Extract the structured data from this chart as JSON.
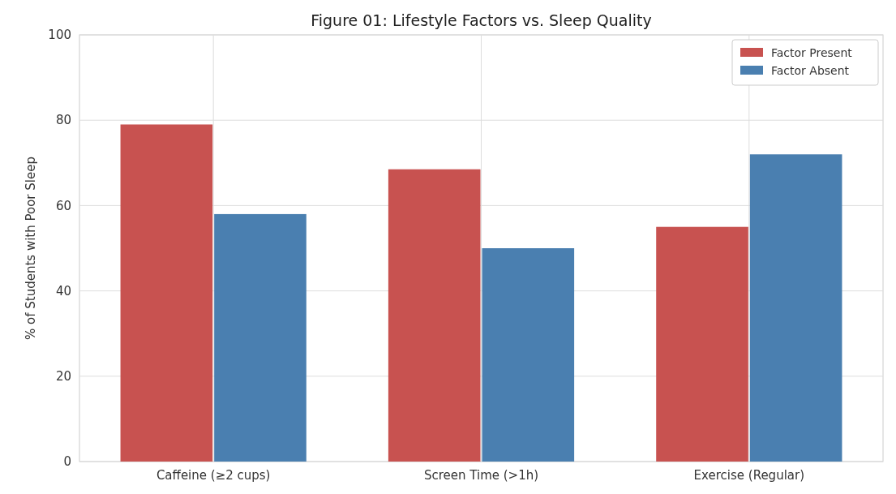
{
  "chart_data": {
    "type": "bar",
    "title": "Figure 01: Lifestyle Factors vs. Sleep Quality",
    "ylabel": "% of Students with Poor Sleep",
    "categories": [
      "Caffeine (≥2 cups)",
      "Screen Time (>1h)",
      "Exercise (Regular)"
    ],
    "series": [
      {
        "name": "Factor Present",
        "color": "#c85250",
        "values": [
          79,
          68.5,
          55
        ]
      },
      {
        "name": "Factor Absent",
        "color": "#4a7fb0",
        "values": [
          58,
          50,
          72
        ]
      }
    ],
    "ylim": [
      0,
      100
    ],
    "yticks": [
      0,
      20,
      40,
      60,
      80,
      100
    ],
    "grid": true,
    "legend": "top right"
  }
}
